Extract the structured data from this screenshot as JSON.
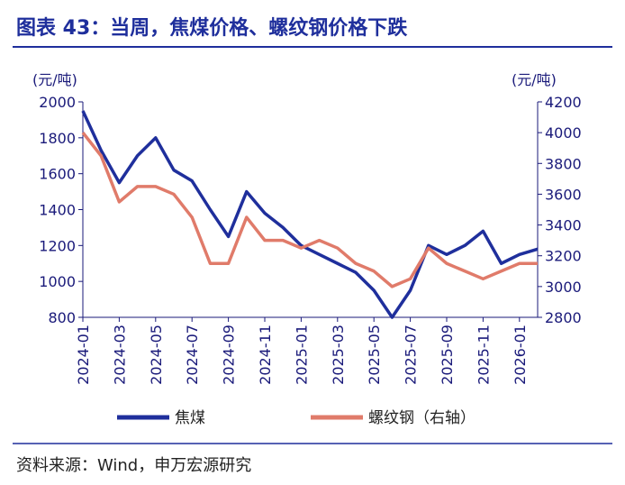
{
  "chart_data": {
    "type": "line",
    "title": "图表 43：当周，焦煤价格、螺纹钢价格下跌",
    "y_label": "(元/吨)",
    "y2_label": "(元/吨)",
    "source": "资料来源：Wind，申万宏源研究",
    "x": [
      "2024-01",
      "2024-02",
      "2024-03",
      "2024-04",
      "2024-05",
      "2024-06",
      "2024-07",
      "2024-08",
      "2024-09",
      "2024-10",
      "2024-11",
      "2024-12",
      "2025-01",
      "2025-02",
      "2025-03",
      "2025-04",
      "2025-05",
      "2025-06",
      "2025-07",
      "2025-08",
      "2025-09",
      "2025-10",
      "2025-11",
      "2025-12",
      "2026-01",
      "2026-02"
    ],
    "xlim": [
      "2024-01",
      "2026-02"
    ],
    "xticks": [
      "2024-01",
      "2024-03",
      "2024-05",
      "2024-07",
      "2024-09",
      "2024-11",
      "2025-01",
      "2025-03",
      "2025-05",
      "2025-07",
      "2025-09",
      "2025-11",
      "2026-01"
    ],
    "ylim": [
      800,
      2000
    ],
    "yticks": [
      800,
      1000,
      1200,
      1400,
      1600,
      1800,
      2000
    ],
    "y2lim": [
      2800,
      4200
    ],
    "y2ticks": [
      2800,
      3000,
      3200,
      3400,
      3600,
      3800,
      4000,
      4200
    ],
    "legend": "bottom",
    "series": [
      {
        "name": "焦煤",
        "color": "#1f2f9c",
        "values": [
          1950,
          1730,
          1550,
          1700,
          1800,
          1620,
          1560,
          1400,
          1250,
          1500,
          1380,
          1300,
          1200,
          1150,
          1100,
          1050,
          950,
          800,
          950,
          1200,
          1150,
          1200,
          1280,
          1100,
          1150,
          1180
        ]
      },
      {
        "name": "螺纹钢（右轴）",
        "color": "#e07b6a",
        "axis": "y2",
        "values": [
          4000,
          3850,
          3550,
          3650,
          3650,
          3600,
          3450,
          3150,
          3150,
          3450,
          3300,
          3300,
          3250,
          3300,
          3250,
          3150,
          3100,
          3000,
          3050,
          3250,
          3150,
          3100,
          3050,
          3100,
          3150,
          3150
        ]
      }
    ]
  }
}
